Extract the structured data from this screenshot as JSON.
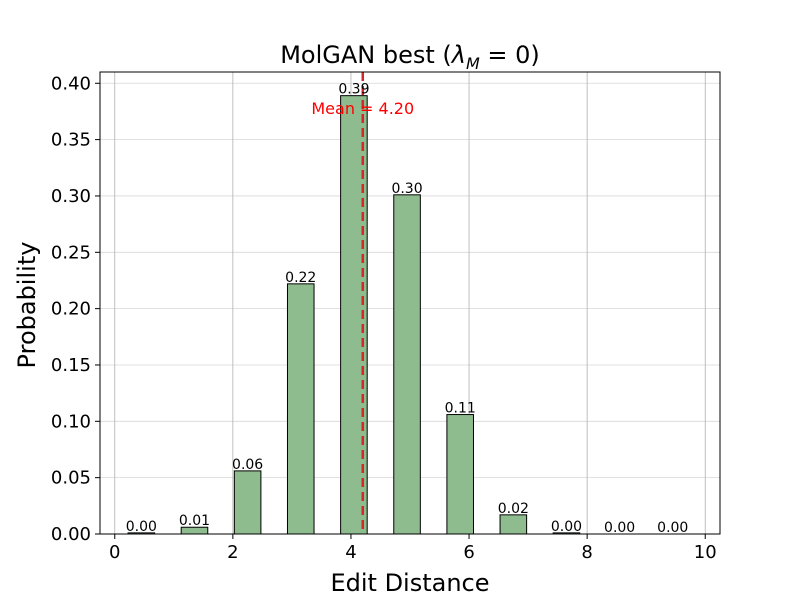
{
  "chart_data": {
    "type": "bar",
    "title_prefix": "MolGAN best (",
    "title_symbol": "λ",
    "title_subscript": "M",
    "title_suffix": " = 0)",
    "xlabel": "Edit Distance",
    "ylabel": "Probability",
    "xlim": [
      -0.25,
      10.25
    ],
    "ylim": [
      0,
      0.41
    ],
    "xticks": [
      0,
      2,
      4,
      6,
      8,
      10
    ],
    "yticks": [
      0.0,
      0.05,
      0.1,
      0.15,
      0.2,
      0.25,
      0.3,
      0.35,
      0.4
    ],
    "grid": true,
    "bar_color": "#8fbc8f",
    "bar_edge_color": "#000000",
    "bar_width": 0.45,
    "bars": [
      {
        "x": 0.45,
        "value": 0.001,
        "label": "0.00"
      },
      {
        "x": 1.35,
        "value": 0.006,
        "label": "0.01"
      },
      {
        "x": 2.25,
        "value": 0.056,
        "label": "0.06"
      },
      {
        "x": 3.15,
        "value": 0.222,
        "label": "0.22"
      },
      {
        "x": 4.05,
        "value": 0.389,
        "label": "0.39"
      },
      {
        "x": 4.95,
        "value": 0.301,
        "label": "0.30"
      },
      {
        "x": 5.85,
        "value": 0.106,
        "label": "0.11"
      },
      {
        "x": 6.75,
        "value": 0.017,
        "label": "0.02"
      },
      {
        "x": 7.65,
        "value": 0.001,
        "label": "0.00"
      },
      {
        "x": 8.55,
        "value": 0.0,
        "label": "0.00"
      },
      {
        "x": 9.45,
        "value": 0.0,
        "label": "0.00"
      }
    ],
    "mean": {
      "value": 4.2,
      "label": "Mean = 4.20",
      "color": "#ff0000",
      "line_color": "#d62728"
    }
  }
}
